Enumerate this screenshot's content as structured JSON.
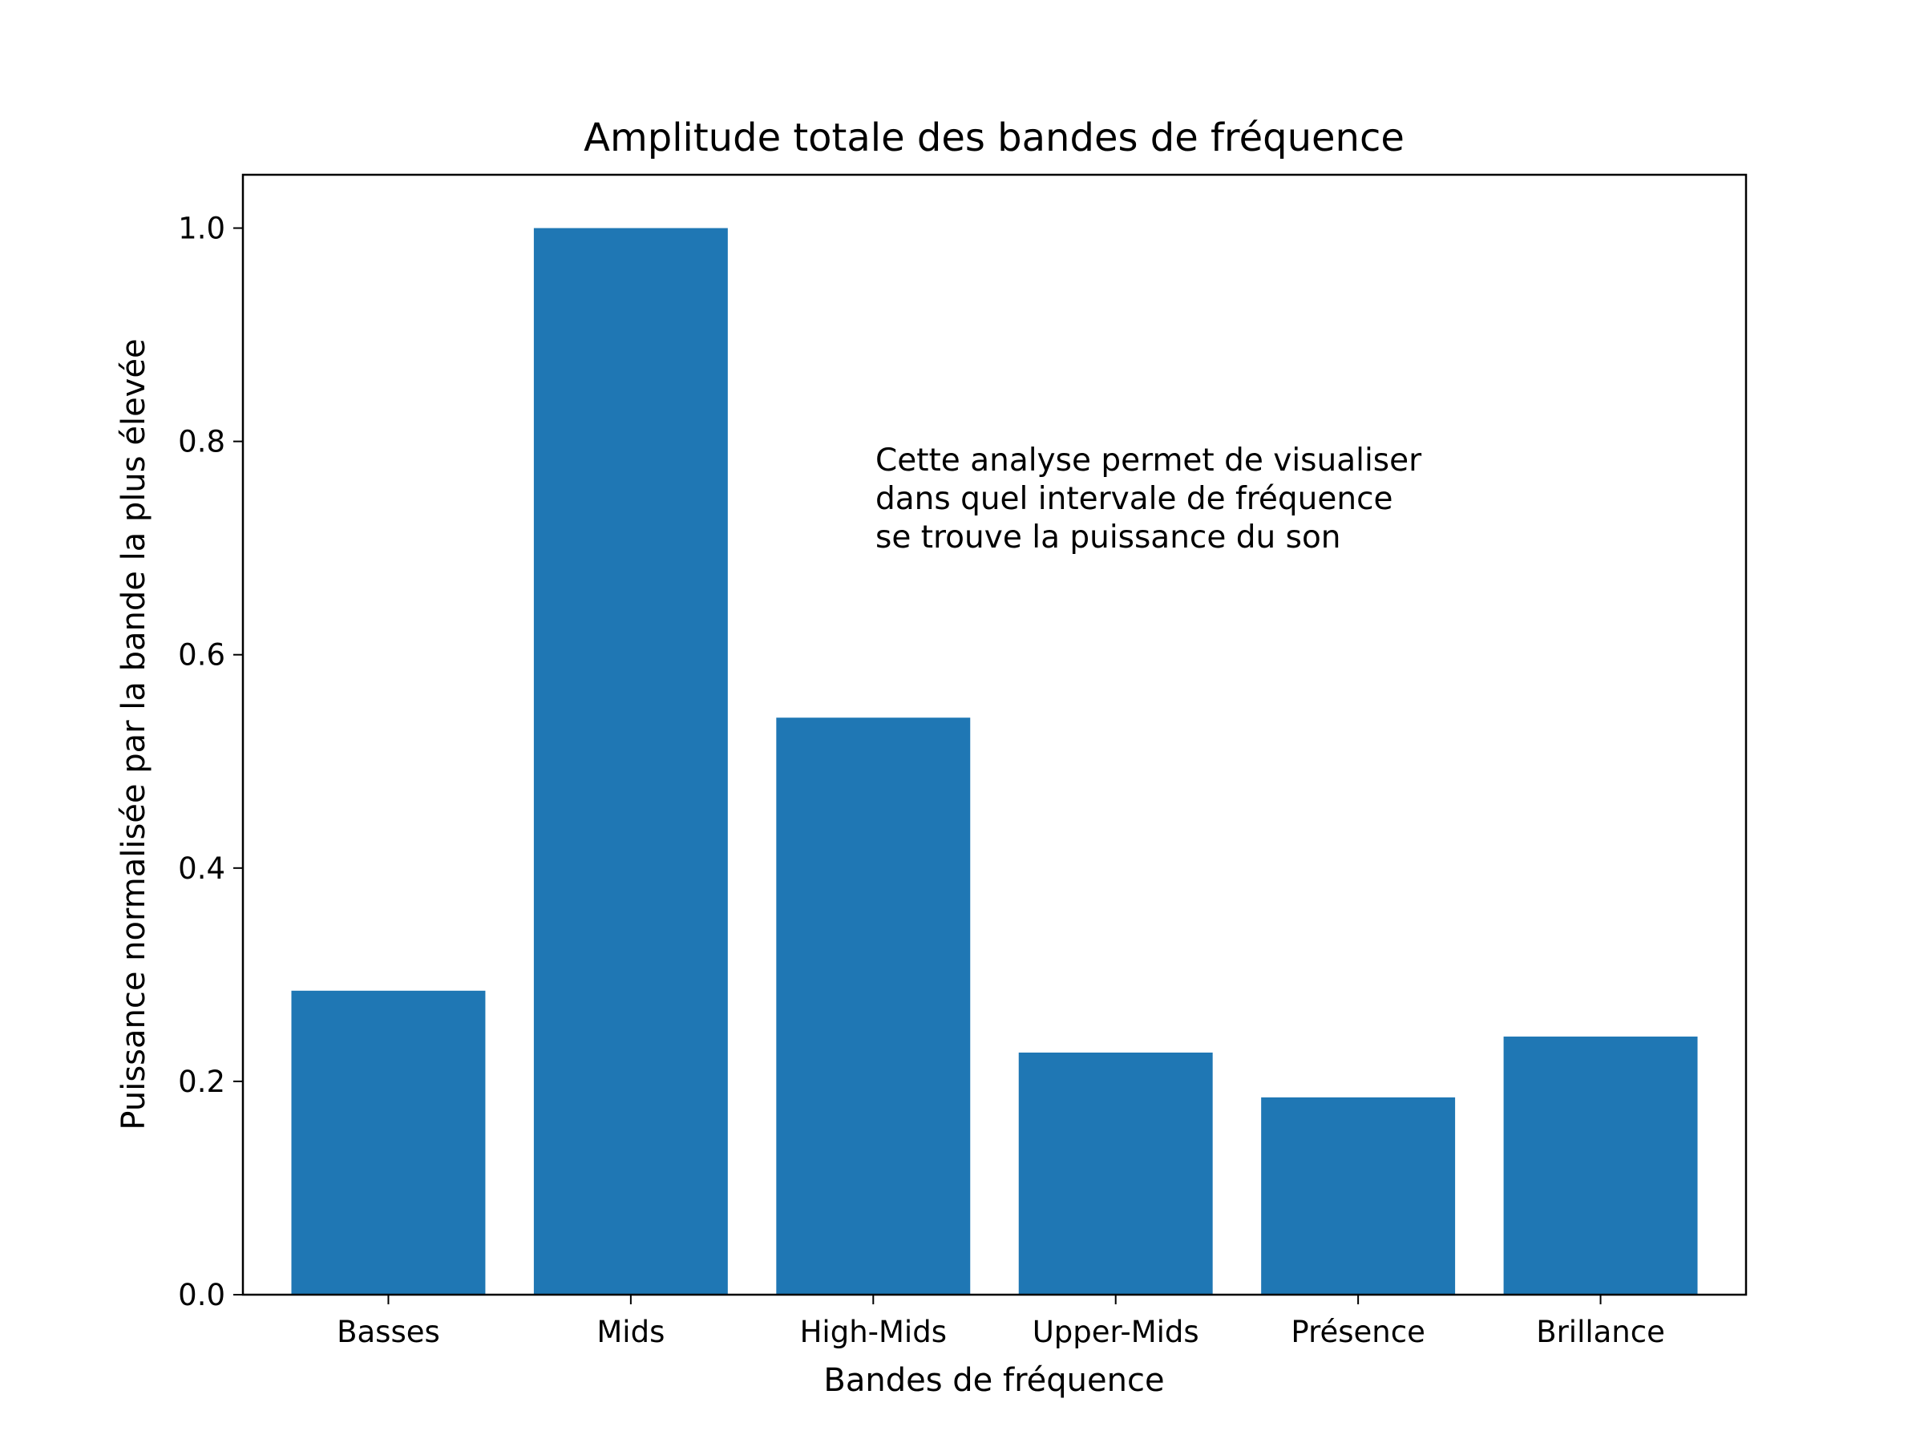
{
  "chart_data": {
    "type": "bar",
    "title": "Amplitude totale des bandes de fréquence",
    "xlabel": "Bandes de fréquence",
    "ylabel": "Puissance normalisée par la bande la plus élevée",
    "categories": [
      "Basses",
      "Mids",
      "High-Mids",
      "Upper-Mids",
      "Présence",
      "Brillance"
    ],
    "values": [
      0.285,
      1.0,
      0.541,
      0.227,
      0.185,
      0.242
    ],
    "ylim": [
      0,
      1.05
    ],
    "yticks": [
      "0.0",
      "0.2",
      "0.4",
      "0.6",
      "0.8",
      "1.0"
    ],
    "grid": false,
    "bar_color": "#1f77b4",
    "annotation": [
      "Cette analyse permet de visualiser",
      "dans quel intervale de fréquence",
      "se trouve la puissance du son"
    ]
  }
}
